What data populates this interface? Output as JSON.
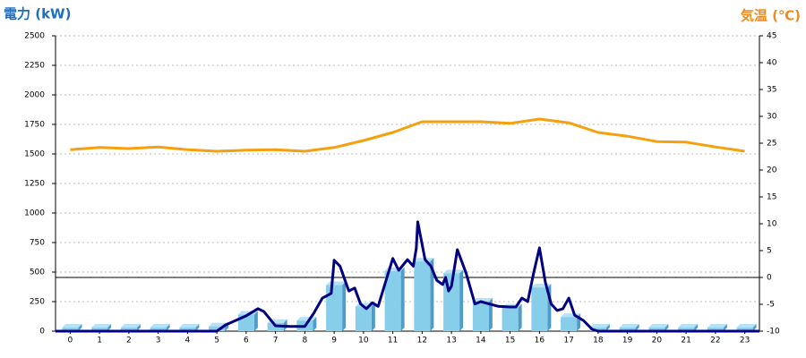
{
  "chart_data": {
    "type": "combo",
    "y_label": "電力 (kW)",
    "y2_label": "気温 (℃)",
    "categories": [
      "0",
      "1",
      "2",
      "3",
      "4",
      "5",
      "6",
      "7",
      "8",
      "9",
      "10",
      "11",
      "12",
      "13",
      "14",
      "15",
      "16",
      "17",
      "18",
      "19",
      "20",
      "21",
      "22",
      "23"
    ],
    "xlim": [
      -0.5,
      23.5
    ],
    "ylim": [
      0,
      2500
    ],
    "yticks": [
      0,
      250,
      500,
      750,
      1000,
      1250,
      1500,
      1750,
      2000,
      2250,
      2500
    ],
    "y2lim": [
      -10,
      45
    ],
    "y2ticks": [
      -10,
      -5,
      0,
      5,
      10,
      15,
      20,
      25,
      30,
      35,
      40,
      45
    ],
    "y2_reference": 0,
    "grid": true,
    "series": [
      {
        "type": "bar",
        "color": "#87ceeb",
        "values": [
          30,
          30,
          30,
          30,
          30,
          40,
          140,
          70,
          90,
          390,
          210,
          510,
          590,
          490,
          250,
          200,
          370,
          120,
          30,
          30,
          30,
          30,
          30,
          30
        ]
      },
      {
        "type": "line",
        "color": "#000080",
        "x": [
          -0.5,
          5,
          5.3,
          6,
          6.4,
          6.6,
          7,
          7.5,
          8,
          8.3,
          8.6,
          8.9,
          9,
          9.2,
          9.5,
          9.7,
          9.9,
          10.1,
          10.3,
          10.5,
          10.8,
          11,
          11.2,
          11.5,
          11.7,
          11.8,
          11.85,
          12.1,
          12.3,
          12.5,
          12.7,
          12.8,
          12.9,
          13,
          13.2,
          13.5,
          13.8,
          14,
          14.3,
          14.6,
          15,
          15.2,
          15.4,
          15.6,
          15.8,
          16,
          16.2,
          16.4,
          16.6,
          16.8,
          17,
          17.2,
          17.5,
          17.8,
          18,
          23.5
        ],
        "values": [
          0,
          0,
          53,
          130,
          190,
          167,
          45,
          40,
          40,
          150,
          280,
          320,
          600,
          550,
          340,
          365,
          230,
          190,
          240,
          210,
          455,
          615,
          515,
          605,
          550,
          700,
          925,
          605,
          550,
          430,
          395,
          455,
          340,
          380,
          690,
          490,
          230,
          250,
          230,
          210,
          205,
          205,
          280,
          250,
          490,
          705,
          415,
          230,
          175,
          190,
          280,
          135,
          90,
          15,
          0,
          0
        ]
      },
      {
        "type": "line",
        "axis": "y2",
        "color": "#f5a00f",
        "values": [
          23.8,
          24.2,
          24,
          24.3,
          23.8,
          23.5,
          23.7,
          23.8,
          23.5,
          24.2,
          25.5,
          27,
          29,
          29,
          29,
          28.7,
          29.5,
          28.8,
          27,
          26.3,
          25.3,
          25.2,
          24.3,
          23.5
        ]
      }
    ]
  }
}
